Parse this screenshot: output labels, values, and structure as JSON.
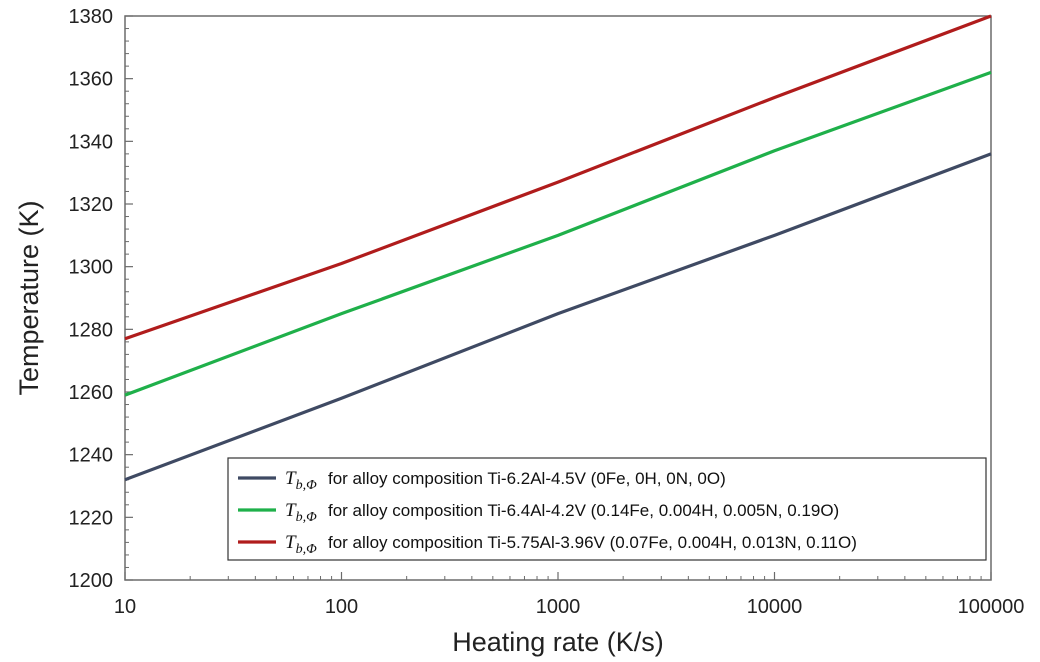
{
  "chart_data": {
    "type": "line",
    "title": "",
    "xlabel": "Heating rate (K/s)",
    "ylabel": "Temperature (K)",
    "x_scale": "log",
    "xlim": [
      10,
      100000
    ],
    "ylim": [
      1200,
      1380
    ],
    "x_ticks": [
      10,
      100,
      1000,
      10000,
      100000
    ],
    "x_tick_labels": [
      "10",
      "100",
      "1000",
      "10000",
      "100000"
    ],
    "y_ticks": [
      1200,
      1220,
      1240,
      1260,
      1280,
      1300,
      1320,
      1340,
      1360,
      1380
    ],
    "y_tick_labels": [
      "1200",
      "1220",
      "1240",
      "1260",
      "1280",
      "1300",
      "1320",
      "1340",
      "1360",
      "1380"
    ],
    "grid": false,
    "legend_position": "bottom-right",
    "legend_symbol": "T",
    "legend_symbol_sub": "b,Φ",
    "series": [
      {
        "name": "for alloy composition Ti-6.2Al-4.5V (0Fe, 0H, 0N, 0O)",
        "color": "#3f4a63",
        "x": [
          10,
          100,
          1000,
          10000,
          100000
        ],
        "y": [
          1232,
          1258,
          1285,
          1310,
          1336
        ]
      },
      {
        "name": "for alloy composition Ti-6.4Al-4.2V (0.14Fe, 0.004H, 0.005N, 0.19O)",
        "color": "#1fb04a",
        "x": [
          10,
          100,
          1000,
          10000,
          100000
        ],
        "y": [
          1259,
          1285,
          1310,
          1337,
          1362
        ]
      },
      {
        "name": "for alloy composition Ti-5.75Al-3.96V (0.07Fe, 0.004H, 0.013N, 0.11O)",
        "color": "#b01c1c",
        "x": [
          10,
          100,
          1000,
          10000,
          100000
        ],
        "y": [
          1277,
          1301,
          1327,
          1354,
          1380
        ]
      }
    ]
  }
}
